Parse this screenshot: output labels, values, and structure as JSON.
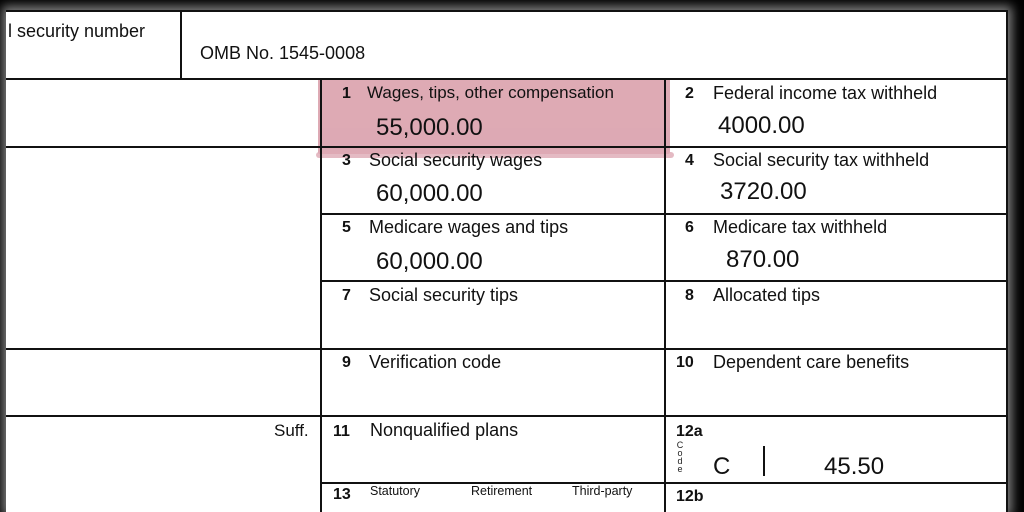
{
  "header": {
    "ssn_label_fragment": "l security number",
    "omb_number": "OMB No. 1545-0008"
  },
  "boxes": [
    {
      "num": "1",
      "label": "Wages, tips, other compensation",
      "value": "55,000.00"
    },
    {
      "num": "2",
      "label": "Federal income tax withheld",
      "value": "4000.00"
    },
    {
      "num": "3",
      "label": "Social security wages",
      "value": "60,000.00"
    },
    {
      "num": "4",
      "label": "Social security tax withheld",
      "value": "3720.00"
    },
    {
      "num": "5",
      "label": "Medicare wages and tips",
      "value": "60,000.00"
    },
    {
      "num": "6",
      "label": "Medicare tax withheld",
      "value": "870.00"
    },
    {
      "num": "7",
      "label": "Social security tips",
      "value": ""
    },
    {
      "num": "8",
      "label": "Allocated tips",
      "value": ""
    },
    {
      "num": "9",
      "label": "Verification code",
      "value": ""
    },
    {
      "num": "10",
      "label": "Dependent care benefits",
      "value": ""
    },
    {
      "num": "11",
      "label": "Nonqualified plans",
      "value": ""
    },
    {
      "num": "12a",
      "label": "",
      "code_word": "Code",
      "code": "C",
      "value": "45.50"
    },
    {
      "num": "13",
      "checkboxes": [
        "Statutory",
        "Retirement",
        "Third-party"
      ]
    },
    {
      "num": "12b",
      "label": ""
    }
  ],
  "left_column": {
    "suff_label": "Suff."
  },
  "highlight_color": "#d99eaa"
}
